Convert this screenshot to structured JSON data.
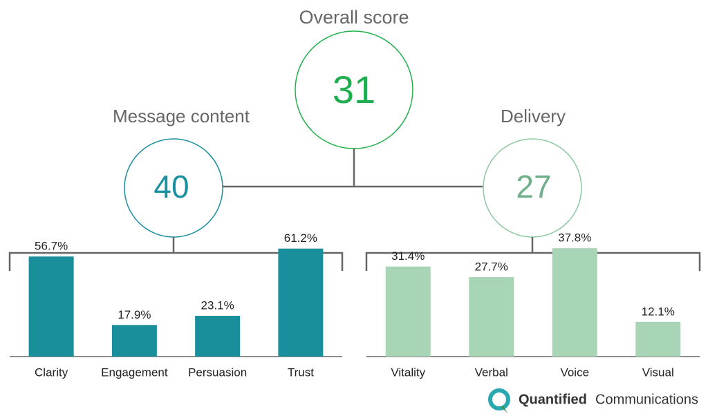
{
  "chart_data": [
    {
      "type": "bar",
      "categories": [
        "Clarity",
        "Engagement",
        "Persuasion",
        "Trust"
      ],
      "values": [
        56.7,
        17.9,
        23.1,
        61.2
      ],
      "value_labels": [
        "56.7%",
        "17.9%",
        "23.1%",
        "61.2%"
      ],
      "color": "#1a8f9c",
      "ylim": [
        0,
        65
      ]
    },
    {
      "type": "bar",
      "categories": [
        "Vitality",
        "Verbal",
        "Voice",
        "Visual"
      ],
      "values": [
        31.4,
        27.7,
        37.8,
        12.1
      ],
      "value_labels": [
        "31.4%",
        "27.7%",
        "37.8%",
        "12.1%"
      ],
      "color": "#a8d5b5",
      "ylim": [
        0,
        40
      ]
    }
  ],
  "scores": {
    "overall": {
      "label": "Overall score",
      "value": 31
    },
    "content": {
      "label": "Message content",
      "value": 40
    },
    "delivery": {
      "label": "Delivery",
      "value": 27
    }
  },
  "brand": {
    "name_bold": "Quantified",
    "name_light": "Communications"
  }
}
